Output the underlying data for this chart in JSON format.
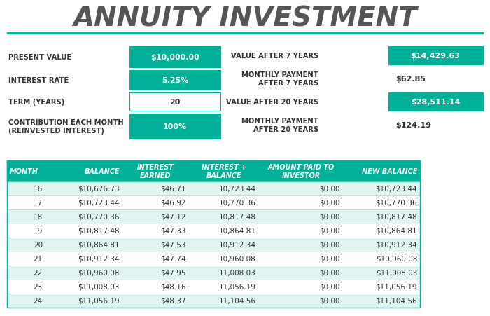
{
  "title": "ANNUITY INVESTMENT",
  "title_color": "#555555",
  "teal": "#00B098",
  "teal_light": "#E0F5F2",
  "white": "#FFFFFF",
  "bg": "#FFFFFF",
  "left_labels": [
    "PRESENT VALUE",
    "INTEREST RATE",
    "TERM (YEARS)",
    "CONTRIBUTION EACH MONTH\n(REINVESTED INTEREST)"
  ],
  "left_values": [
    "$10,000.00",
    "5.25%",
    "20",
    "100%"
  ],
  "left_highlighted": [
    true,
    true,
    false,
    true
  ],
  "right_labels": [
    "VALUE AFTER 7 YEARS",
    "MONTHLY PAYMENT\nAFTER 7 YEARS",
    "VALUE AFTER 20 YEARS",
    "MONTHLY PAYMENT\nAFTER 20 YEARS"
  ],
  "right_values": [
    "$14,429.63",
    "$62.85",
    "$28,511.14",
    "$124.19"
  ],
  "right_highlighted": [
    true,
    false,
    true,
    false
  ],
  "col_headers": [
    "MONTH",
    "BALANCE",
    "INTEREST\nEARNED",
    "INTEREST +\nBALANCE",
    "AMOUNT PAID TO\nINVESTOR",
    "NEW BALANCE"
  ],
  "table_data": [
    [
      "16",
      "$10,676.73",
      "$46.71",
      "10,723.44",
      "$0.00",
      "$10,723.44"
    ],
    [
      "17",
      "$10,723.44",
      "$46.92",
      "10,770.36",
      "$0.00",
      "$10,770.36"
    ],
    [
      "18",
      "$10,770.36",
      "$47.12",
      "10,817.48",
      "$0.00",
      "$10,817.48"
    ],
    [
      "19",
      "$10,817.48",
      "$47.33",
      "10,864.81",
      "$0.00",
      "$10,864.81"
    ],
    [
      "20",
      "$10,864.81",
      "$47.53",
      "10,912.34",
      "$0.00",
      "$10,912.34"
    ],
    [
      "21",
      "$10,912.34",
      "$47.74",
      "10,960.08",
      "$0.00",
      "$10,960.08"
    ],
    [
      "22",
      "$10,960.08",
      "$47.95",
      "11,008.03",
      "$0.00",
      "$11,008.03"
    ],
    [
      "23",
      "$11,008.03",
      "$48.16",
      "11,056.19",
      "$0.00",
      "$11,056.19"
    ],
    [
      "24",
      "$11,056.19",
      "$48.37",
      "11,104.56",
      "$0.00",
      "$11,104.56"
    ]
  ]
}
